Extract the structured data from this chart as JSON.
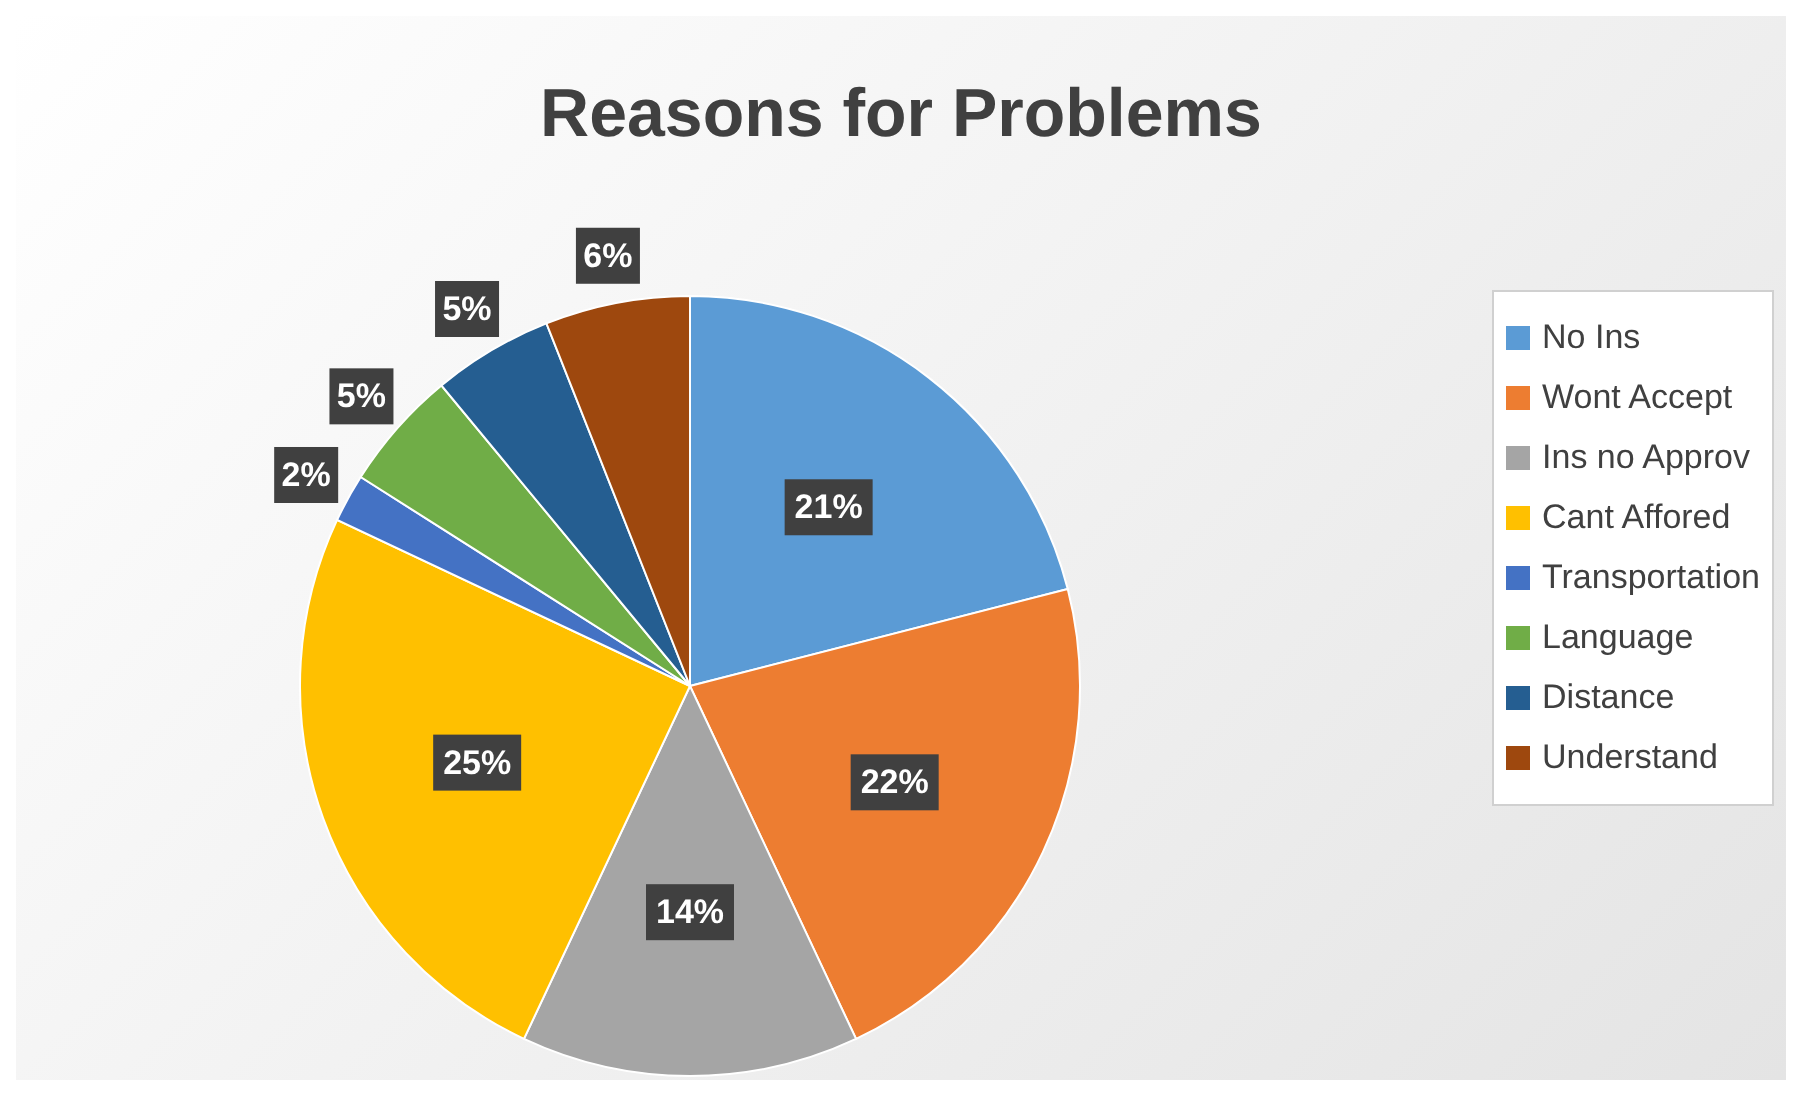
{
  "chart_data": {
    "type": "pie",
    "title": "Reasons for Problems",
    "categories": [
      "No Ins",
      "Wont Accept",
      "Ins no Approv",
      "Cant Affored",
      "Transportation",
      "Language",
      "Distance",
      "Understand"
    ],
    "values": [
      21,
      22,
      14,
      25,
      2,
      5,
      5,
      6
    ],
    "value_labels": [
      "21%",
      "22%",
      "14%",
      "25%",
      "2%",
      "5%",
      "5%",
      "6%"
    ],
    "colors": [
      "#5b9bd5",
      "#ed7d31",
      "#a5a5a5",
      "#ffc000",
      "#4472c4",
      "#70ad47",
      "#255e91",
      "#9e480e"
    ],
    "legend": "right"
  }
}
